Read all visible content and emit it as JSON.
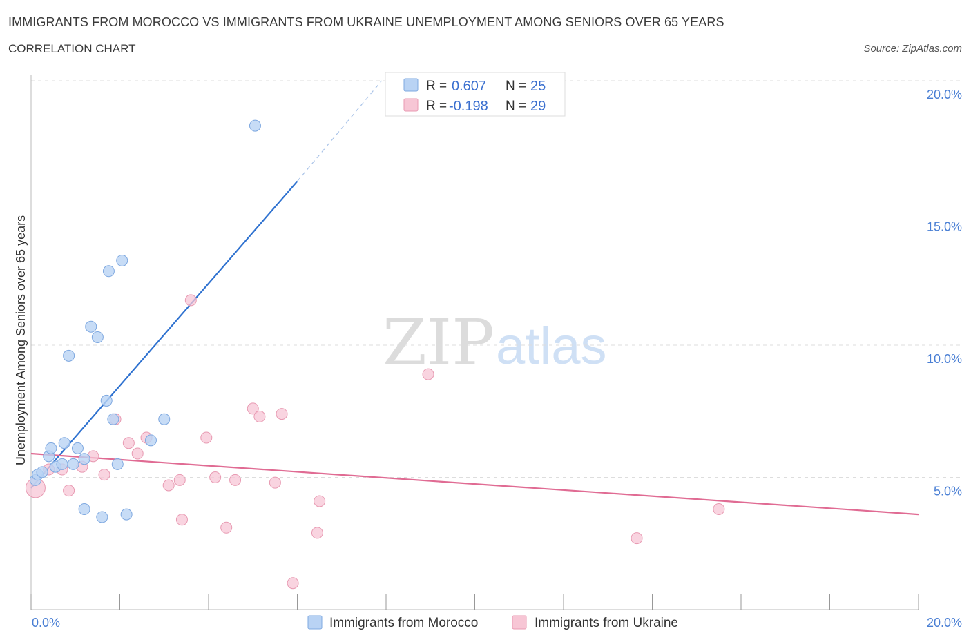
{
  "header": {
    "title": "IMMIGRANTS FROM MOROCCO VS IMMIGRANTS FROM UKRAINE UNEMPLOYMENT AMONG SENIORS OVER 65 YEARS",
    "subtitle": "CORRELATION CHART",
    "source": "Source: ZipAtlas.com"
  },
  "watermark": {
    "zip": "ZIP",
    "atlas": "atlas"
  },
  "colors": {
    "morocco_fill": "#b9d3f4",
    "morocco_stroke": "#7ea8e0",
    "morocco_line": "#2f72d0",
    "ukraine_fill": "#f7c6d5",
    "ukraine_stroke": "#e89ab2",
    "ukraine_line": "#e06b93",
    "grid": "#dddddd",
    "tick_text": "#4a7fd4"
  },
  "stats": {
    "morocco": {
      "r_label": "R =",
      "r_value": "0.607",
      "n_label": "N =",
      "n_value": "25"
    },
    "ukraine": {
      "r_label": "R =",
      "r_value": "-0.198",
      "n_label": "N =",
      "n_value": "29"
    }
  },
  "chart_data": {
    "type": "scatter",
    "xlabel": "",
    "ylabel": "Unemployment Among Seniors over 65 years",
    "xlim": [
      0,
      20
    ],
    "ylim": [
      0,
      20
    ],
    "x_tick_labels": {
      "left": "0.0%",
      "right": "20.0%"
    },
    "y_ticks": [
      {
        "value": 5,
        "label": "5.0%"
      },
      {
        "value": 10,
        "label": "10.0%"
      },
      {
        "value": 15,
        "label": "15.0%"
      },
      {
        "value": 20,
        "label": "20.0%"
      }
    ],
    "legend": [
      "Immigrants from Morocco",
      "Immigrants from Ukraine"
    ],
    "series": [
      {
        "name": "Immigrants from Morocco",
        "points": [
          [
            0.1,
            4.9
          ],
          [
            0.15,
            5.1
          ],
          [
            0.25,
            5.2
          ],
          [
            0.4,
            5.8
          ],
          [
            0.45,
            6.1
          ],
          [
            0.55,
            5.4
          ],
          [
            0.7,
            5.5
          ],
          [
            0.75,
            6.3
          ],
          [
            0.85,
            9.6
          ],
          [
            0.95,
            5.5
          ],
          [
            1.05,
            6.1
          ],
          [
            1.2,
            5.7
          ],
          [
            1.35,
            10.7
          ],
          [
            1.5,
            10.3
          ],
          [
            1.7,
            7.9
          ],
          [
            1.75,
            12.8
          ],
          [
            1.85,
            7.2
          ],
          [
            1.95,
            5.5
          ],
          [
            2.05,
            13.2
          ],
          [
            2.15,
            3.6
          ],
          [
            2.7,
            6.4
          ],
          [
            3.0,
            7.2
          ],
          [
            1.2,
            3.8
          ],
          [
            1.6,
            3.5
          ],
          [
            5.05,
            18.3
          ]
        ],
        "trend": {
          "x0": 0.0,
          "y0": 4.6,
          "x1": 6.0,
          "y1": 16.2,
          "dash_to_x": 7.9,
          "dash_to_y": 20.0
        }
      },
      {
        "name": "Immigrants from Ukraine",
        "points": [
          [
            0.1,
            4.6
          ],
          [
            0.4,
            5.3
          ],
          [
            0.7,
            5.3
          ],
          [
            0.85,
            4.5
          ],
          [
            1.15,
            5.4
          ],
          [
            1.4,
            5.8
          ],
          [
            1.65,
            5.1
          ],
          [
            1.9,
            7.2
          ],
          [
            2.2,
            6.3
          ],
          [
            2.4,
            5.9
          ],
          [
            2.6,
            6.5
          ],
          [
            3.1,
            4.7
          ],
          [
            3.35,
            4.9
          ],
          [
            3.6,
            11.7
          ],
          [
            3.4,
            3.4
          ],
          [
            3.95,
            6.5
          ],
          [
            4.15,
            5.0
          ],
          [
            4.4,
            3.1
          ],
          [
            4.6,
            4.9
          ],
          [
            5.0,
            7.6
          ],
          [
            5.15,
            7.3
          ],
          [
            5.5,
            4.8
          ],
          [
            5.65,
            7.4
          ],
          [
            5.9,
            1.0
          ],
          [
            6.45,
            2.9
          ],
          [
            6.5,
            4.1
          ],
          [
            8.95,
            8.9
          ],
          [
            13.65,
            2.7
          ],
          [
            15.5,
            3.8
          ]
        ],
        "trend": {
          "x0": 0.0,
          "y0": 5.9,
          "x1": 20.0,
          "y1": 3.6
        }
      }
    ]
  }
}
